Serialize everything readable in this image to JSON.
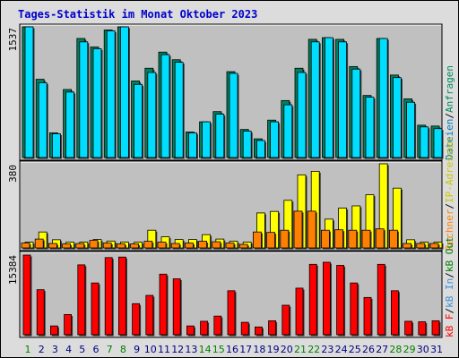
{
  "title": "Tages-Statistik im Monat Oktober 2023",
  "legend_top": [
    {
      "text": "Dateien",
      "color": "#0077bb"
    },
    {
      "text": "/",
      "color": "#000000"
    },
    {
      "text": "Anfragen",
      "color": "#008a5c"
    }
  ],
  "legend_mid": [
    {
      "text": "Rechner",
      "color": "#ff8000"
    },
    {
      "text": "/",
      "color": "#000000"
    },
    {
      "text": "IP-Adressen",
      "color": "#c8c800"
    }
  ],
  "legend_bottom": [
    {
      "text": "kB F",
      "color": "#ff0000"
    },
    {
      "text": "/",
      "color": "#000000"
    },
    {
      "text": "kB In",
      "color": "#3a8fd9"
    },
    {
      "text": "/",
      "color": "#000000"
    },
    {
      "text": "kB Out",
      "color": "#008000"
    }
  ],
  "colors": {
    "background": "#dcdcdc",
    "panel": "#c0c0c0",
    "hits": "#00805c",
    "files": "#00ddff",
    "sites": "#ff8000",
    "visits": "#ffff00",
    "kbytes": "#ff0000",
    "weekday": "#000080",
    "weekend": "#008000"
  },
  "chart_data": {
    "type": "bar",
    "categories": [
      "1",
      "2",
      "3",
      "4",
      "5",
      "6",
      "7",
      "8",
      "9",
      "10",
      "11",
      "12",
      "13",
      "14",
      "15",
      "16",
      "17",
      "18",
      "19",
      "20",
      "21",
      "22",
      "23",
      "24",
      "25",
      "26",
      "27",
      "28",
      "29",
      "30",
      "31"
    ],
    "weekend_days": [
      "1",
      "7",
      "8",
      "14",
      "15",
      "21",
      "22",
      "28",
      "29"
    ],
    "panels": [
      {
        "id": "hits-files",
        "ymax_label": "1537",
        "ymax": 1537,
        "series": [
          {
            "name": "Anfragen",
            "values": [
              1537,
              920,
              290,
              800,
              1400,
              1300,
              1500,
              1537,
              900,
              1050,
              1240,
              1150,
              300,
              420,
              540,
              1010,
              330,
              220,
              440,
              670,
              1050,
              1390,
              1410,
              1390,
              1070,
              730,
              1400,
              970,
              690,
              380,
              370
            ]
          },
          {
            "name": "Dateien",
            "values": [
              1537,
              880,
              280,
              770,
              1360,
              1280,
              1490,
              1537,
              860,
              1000,
              1210,
              1120,
              290,
              420,
              510,
              990,
              310,
              200,
              420,
              620,
              1000,
              1360,
              1410,
              1360,
              1040,
              710,
              1400,
              940,
              650,
              360,
              340
            ]
          }
        ]
      },
      {
        "id": "sites-visits",
        "ymax_label": "380",
        "ymax": 380,
        "series": [
          {
            "name": "IP-Adressen",
            "values": [
              26,
              72,
              37,
              26,
              26,
              38,
              31,
              26,
              26,
              80,
              50,
              38,
              38,
              60,
              40,
              30,
              26,
              158,
              165,
              215,
              330,
              346,
              130,
              180,
              190,
              240,
              380,
              270,
              37,
              26,
              26
            ]
          },
          {
            "name": "Rechner",
            "values": [
              22,
              40,
              20,
              18,
              20,
              34,
              22,
              18,
              18,
              30,
              26,
              20,
              22,
              30,
              28,
              22,
              16,
              72,
              70,
              80,
              166,
              166,
              80,
              82,
              80,
              80,
              86,
              80,
              20,
              20,
              20
            ]
          }
        ]
      },
      {
        "id": "kbytes",
        "ymax_label": "15384",
        "ymax": 15384,
        "series": [
          {
            "name": "kB F",
            "values": [
              15384,
              8700,
              1700,
              3900,
              13500,
              10000,
              14900,
              15000,
              6000,
              7600,
              11700,
              10800,
              1700,
              2600,
              3600,
              8500,
              2400,
              1500,
              2700,
              5700,
              9000,
              13600,
              14000,
              13400,
              10000,
              7200,
              13600,
              8500,
              2600,
              2500,
              2700
            ]
          }
        ]
      }
    ]
  }
}
